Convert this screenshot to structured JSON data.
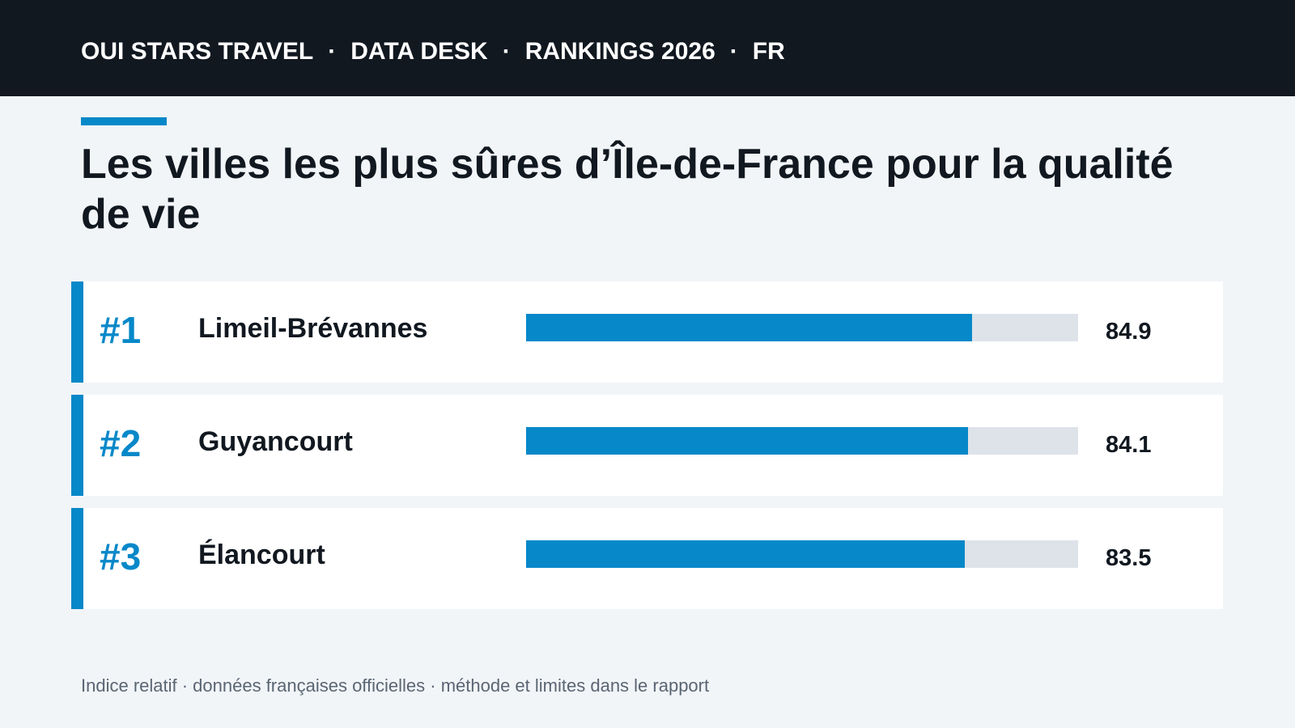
{
  "header": {
    "brand": "OUI STARS TRAVEL",
    "section": "DATA DESK",
    "edition": "RANKINGS 2026",
    "locale": "FR",
    "separator": "·"
  },
  "colors": {
    "accent": "#0788c9",
    "header_bg": "#111820",
    "track": "#dde3e9",
    "page_bg": "#f2f5f8"
  },
  "chart_data": {
    "type": "bar",
    "orientation": "horizontal",
    "title": "Les villes les plus sûres d’Île-de-France pour la qualité de vie",
    "categories": [
      "Limeil-Brévannes",
      "Guyancourt",
      "Élancourt"
    ],
    "ranks": [
      "#1",
      "#2",
      "#3"
    ],
    "values": [
      84.9,
      84.1,
      83.5
    ],
    "value_labels": [
      "84.9",
      "84.1",
      "83.5"
    ],
    "xlim": [
      0,
      105
    ],
    "grid": false,
    "legend": "none"
  },
  "footnote": "Indice relatif · données françaises officielles · méthode et limites dans le rapport"
}
